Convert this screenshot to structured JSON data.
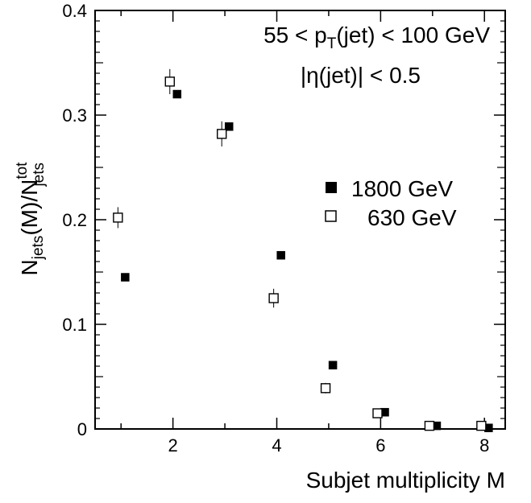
{
  "chart_data": {
    "type": "scatter",
    "xlabel": "Subjet multiplicity M",
    "ylabel": {
      "base": "N",
      "sub1": "jets",
      "mid": "(M)/N",
      "sup2": "tot",
      "sub2": "jets"
    },
    "annotations": {
      "line1": {
        "prefix": "55 < p",
        "sub": "T",
        "suffix": "(jet) < 100 GeV"
      },
      "line2": {
        "text": "|η(jet)| < 0.5"
      }
    },
    "xlim": [
      0.5,
      8.4
    ],
    "ylim": [
      0,
      0.4
    ],
    "x_ticks": [
      2,
      4,
      6,
      8
    ],
    "y_ticks": [
      0,
      0.1,
      0.2,
      0.3,
      0.4
    ],
    "y_tick_labels": [
      "0",
      "0.1",
      "0.2",
      "0.3",
      "0.4"
    ],
    "grid": false,
    "legend_position": "right",
    "series": [
      {
        "name": "1800 GeV",
        "marker": "filled-square",
        "color": "#000000",
        "x": [
          1,
          2,
          3,
          4,
          5,
          6,
          7,
          8
        ],
        "y": [
          0.145,
          0.32,
          0.289,
          0.166,
          0.061,
          0.016,
          0.003,
          0.001
        ],
        "yerr": [
          0.002,
          0.003,
          0.003,
          0.002,
          0.002,
          0.001,
          0.0005,
          0.0003
        ]
      },
      {
        "name": "630 GeV",
        "marker": "open-square",
        "color": "#000000",
        "x": [
          1,
          2,
          3,
          4,
          5,
          6,
          7,
          8
        ],
        "y": [
          0.202,
          0.332,
          0.282,
          0.125,
          0.039,
          0.015,
          0.003,
          0.003
        ],
        "yerr": [
          0.01,
          0.012,
          0.012,
          0.009,
          0.005,
          0.002,
          0.001,
          0.001
        ]
      }
    ]
  }
}
